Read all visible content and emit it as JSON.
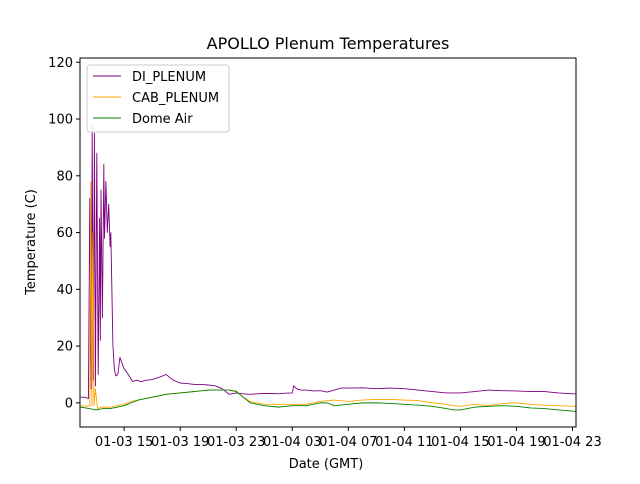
{
  "chart_data": {
    "type": "line",
    "title": "APOLLO Plenum Temperatures",
    "xlabel": "Date (GMT)",
    "ylabel": "Temperature (C)",
    "x_unit": "hours",
    "x_ticks": [
      {
        "x": 15,
        "label": "01-03 15"
      },
      {
        "x": 19,
        "label": "01-03 19"
      },
      {
        "x": 23,
        "label": "01-03 23"
      },
      {
        "x": 27,
        "label": "01-04 03"
      },
      {
        "x": 31,
        "label": "01-04 07"
      },
      {
        "x": 35,
        "label": "01-04 11"
      },
      {
        "x": 39,
        "label": "01-04 15"
      },
      {
        "x": 43,
        "label": "01-04 19"
      },
      {
        "x": 47,
        "label": "01-04 23"
      }
    ],
    "y_ticks": [
      0,
      20,
      40,
      60,
      80,
      100,
      120
    ],
    "xlim": [
      11.85,
      47.25
    ],
    "ylim": [
      -8.5,
      121.5
    ],
    "grid": false,
    "legend_position": "top-left",
    "series": [
      {
        "name": "DI_PLENUM",
        "color": "#800080",
        "x": [
          11.9,
          12.2,
          12.45,
          12.55,
          12.65,
          12.72,
          12.8,
          12.88,
          12.95,
          13.05,
          13.15,
          13.25,
          13.3,
          13.35,
          13.45,
          13.55,
          13.6,
          13.7,
          13.8,
          13.9,
          14.0,
          14.05,
          14.2,
          14.3,
          14.4,
          14.55,
          14.7,
          14.85,
          15.0,
          15.3,
          15.6,
          15.9,
          16.2,
          16.6,
          17.0,
          17.5,
          18.0,
          18.5,
          19.0,
          19.5,
          20.0,
          20.5,
          21.0,
          21.5,
          22.0,
          22.5,
          23.0,
          23.5,
          24.0,
          24.5,
          25.0,
          25.5,
          26.0,
          26.5,
          27.0,
          27.1,
          27.3,
          27.6,
          28.0,
          28.5,
          29.0,
          29.5,
          30.0,
          30.5,
          31.0,
          32.0,
          33.0,
          34.0,
          35.0,
          36.0,
          37.0,
          38.0,
          39.0,
          40.0,
          41.0,
          42.0,
          43.0,
          44.0,
          45.0,
          46.0,
          47.0,
          47.25
        ],
        "y": [
          2,
          2,
          1.5,
          72,
          5,
          98,
          8,
          95,
          6,
          88,
          10,
          65,
          22,
          75,
          30,
          84,
          58,
          78,
          60,
          70,
          55,
          60,
          20,
          12,
          9.5,
          10,
          16,
          14,
          12,
          10,
          7.5,
          8,
          7.5,
          8,
          8.2,
          9,
          10,
          8,
          7,
          6.8,
          6.5,
          6.5,
          6.3,
          6,
          5,
          3,
          3.5,
          3.2,
          3,
          3.2,
          3.3,
          3.3,
          3.2,
          3.4,
          3.5,
          6,
          5,
          4.5,
          4.5,
          4.2,
          4.3,
          3.8,
          4.5,
          5.2,
          5.2,
          5.3,
          5,
          5.2,
          5,
          4.5,
          4,
          3.5,
          3.5,
          4,
          4.5,
          4.3,
          4.2,
          4,
          4,
          3.5,
          3.2,
          3.2
        ]
      },
      {
        "name": "CAB_PLENUM",
        "color": "#ffa500",
        "x": [
          11.9,
          12.4,
          12.55,
          12.62,
          12.7,
          12.78,
          12.85,
          12.95,
          13.1,
          13.4,
          14.0,
          14.5,
          15.0,
          15.5,
          16.0,
          17.0,
          18.0,
          19.0,
          20.0,
          21.0,
          22.0,
          22.5,
          23.0,
          23.5,
          24.0,
          25.0,
          26.0,
          27.0,
          28.0,
          28.5,
          29.0,
          29.5,
          30.0,
          31.0,
          32.0,
          33.0,
          34.0,
          35.0,
          36.0,
          37.0,
          38.0,
          38.5,
          39.0,
          40.0,
          41.0,
          42.0,
          43.0,
          44.0,
          45.0,
          46.0,
          47.25
        ],
        "y": [
          -1,
          -1.2,
          -1,
          78,
          -1,
          60,
          -1,
          5,
          -2,
          -1.5,
          -1.5,
          -1,
          -0.5,
          0.5,
          1,
          2,
          3,
          3.5,
          4,
          4.5,
          4.5,
          4.5,
          4.2,
          2,
          0.5,
          -0.5,
          -0.5,
          -0.5,
          -0.5,
          0,
          0.5,
          0.8,
          1,
          0.5,
          1,
          1.2,
          1.2,
          1,
          0.8,
          0,
          -0.5,
          -1,
          -1.2,
          -0.5,
          -1,
          -0.2,
          0,
          -0.5,
          -0.8,
          -1,
          -1.2
        ]
      },
      {
        "name": "Dome Air",
        "color": "#008000",
        "x": [
          11.9,
          12.5,
          13.0,
          13.5,
          14.0,
          14.5,
          15.0,
          15.5,
          16.0,
          17.0,
          18.0,
          19.0,
          20.0,
          21.0,
          22.0,
          22.5,
          23.0,
          23.5,
          24.0,
          25.0,
          26.0,
          27.0,
          28.0,
          28.5,
          29.0,
          29.5,
          30.0,
          31.0,
          32.0,
          33.0,
          34.0,
          35.0,
          36.0,
          37.0,
          38.0,
          38.5,
          39.0,
          40.0,
          41.0,
          42.0,
          43.0,
          44.0,
          45.0,
          46.0,
          47.25
        ],
        "y": [
          -1.5,
          -2,
          -2.5,
          -2,
          -2,
          -1.5,
          -1,
          0,
          1,
          2,
          3,
          3.5,
          4,
          4.5,
          4.5,
          4.5,
          4,
          2,
          0,
          -1,
          -1.5,
          -1,
          -1,
          -0.5,
          0,
          0,
          -1,
          -0.5,
          0,
          0,
          -0.2,
          -0.5,
          -0.8,
          -1.2,
          -2,
          -2.5,
          -2.5,
          -1.5,
          -1.2,
          -1,
          -1.2,
          -1.8,
          -2,
          -2.5,
          -3
        ]
      }
    ]
  }
}
